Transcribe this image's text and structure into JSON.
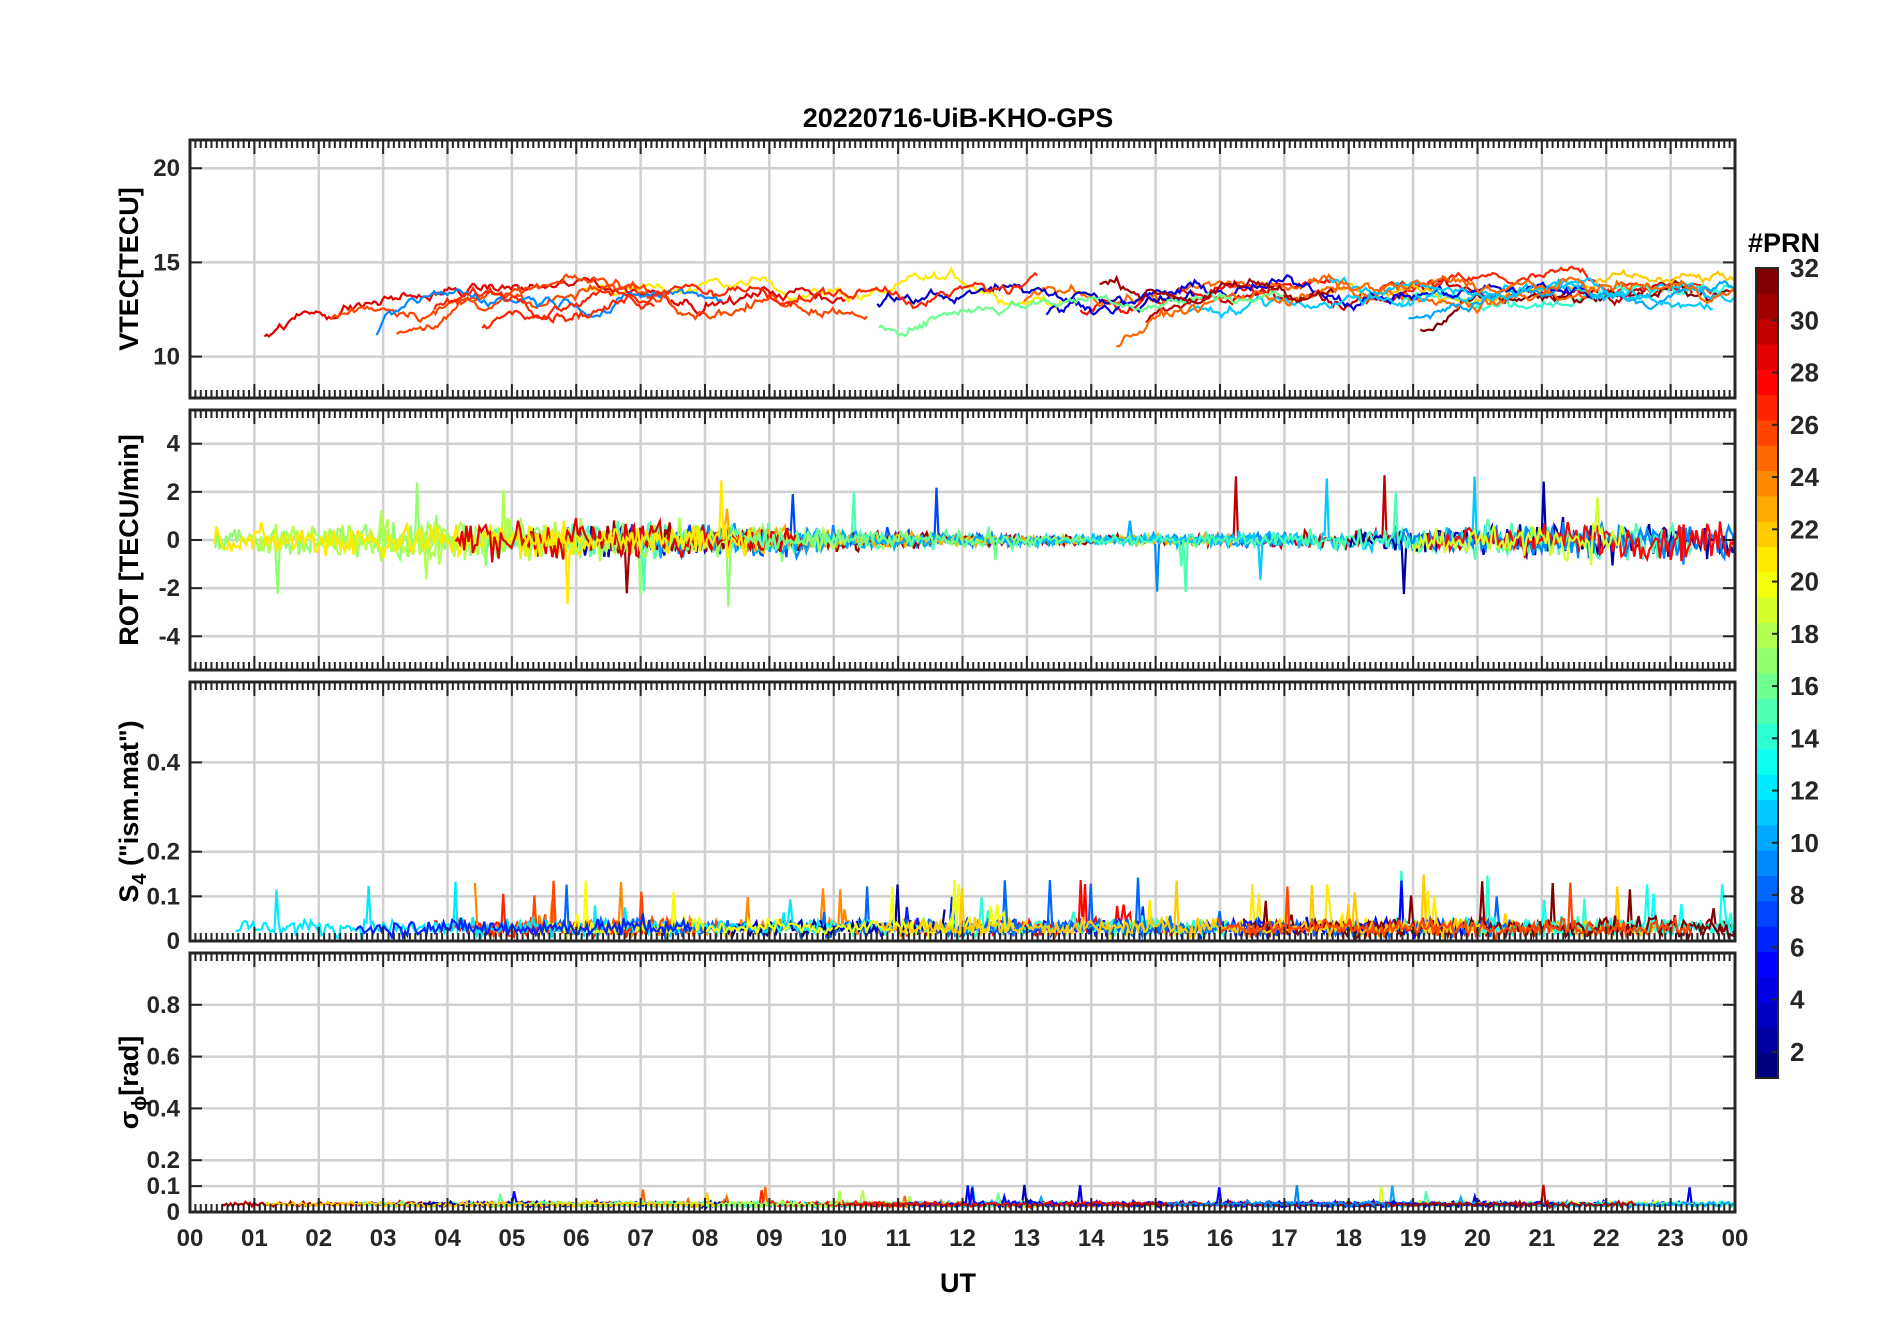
{
  "chart_data": [
    {
      "type": "line",
      "title": "20220716-UiB-KHO-GPS",
      "ylabel": "VTEC[TECU]",
      "xlim": [
        0,
        24
      ],
      "ylim": [
        7.8,
        21.5
      ],
      "yticks": [
        10,
        15,
        20
      ],
      "grid": true,
      "series_note_seed": 1,
      "base": 12.5,
      "noise": 0.9
    },
    {
      "type": "line",
      "ylabel": "ROT [TECU/min]",
      "xlim": [
        0,
        24
      ],
      "ylim": [
        -5.4,
        5.4
      ],
      "yticks": [
        -4,
        -2,
        0,
        2,
        4
      ],
      "grid": true,
      "base": 0,
      "noise": 0.5
    },
    {
      "type": "line",
      "ylabel_main": "S",
      "ylabel_sub": "4",
      "ylabel_rest": " (\"ism.mat\")",
      "xlim": [
        0,
        24
      ],
      "ylim": [
        0,
        0.58
      ],
      "yticks": [
        0,
        0.1,
        0.2,
        0.4
      ],
      "ytick_labels": [
        "0",
        "0.1",
        "0.2",
        "0.4"
      ],
      "grid": true,
      "base": 0.03,
      "noise": 0.02
    },
    {
      "type": "line",
      "ylabel_main": "σ",
      "ylabel_sub": "ϕ",
      "ylabel_rest": "[rad]",
      "xlim": [
        0,
        24
      ],
      "ylim": [
        0,
        1.0
      ],
      "yticks": [
        0,
        0.1,
        0.2,
        0.4,
        0.6,
        0.8
      ],
      "ytick_labels": [
        "0",
        "0.1",
        "0.2",
        "0.4",
        "0.6",
        "0.8"
      ],
      "grid": true,
      "base": 0.03,
      "noise": 0.01
    }
  ],
  "x_axis": {
    "label": "UT",
    "ticks": [
      0,
      1,
      2,
      3,
      4,
      5,
      6,
      7,
      8,
      9,
      10,
      11,
      12,
      13,
      14,
      15,
      16,
      17,
      18,
      19,
      20,
      21,
      22,
      23,
      24
    ],
    "tick_labels": [
      "00",
      "01",
      "02",
      "03",
      "04",
      "05",
      "06",
      "07",
      "08",
      "09",
      "10",
      "11",
      "12",
      "13",
      "14",
      "15",
      "16",
      "17",
      "18",
      "19",
      "20",
      "21",
      "22",
      "23",
      "00"
    ]
  },
  "colorbar": {
    "title": "#PRN",
    "min": 1,
    "max": 32,
    "ticks": [
      2,
      4,
      6,
      8,
      10,
      12,
      14,
      16,
      18,
      20,
      22,
      24,
      26,
      28,
      30,
      32
    ],
    "colormap": "jet"
  }
}
